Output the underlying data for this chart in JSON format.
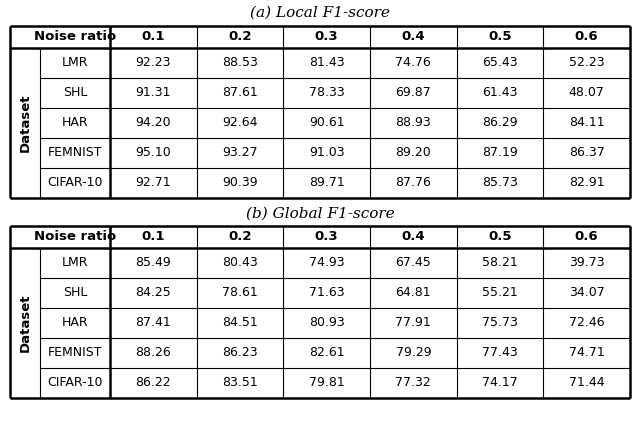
{
  "title_a": "(a) Local F1-score",
  "title_b": "(b) Global F1-score",
  "col_headers": [
    "Noise ratio",
    "0.1",
    "0.2",
    "0.3",
    "0.4",
    "0.5",
    "0.6"
  ],
  "row_label_outer": "Dataset",
  "datasets": [
    "LMR",
    "SHL",
    "HAR",
    "FEMNIST",
    "CIFAR-10"
  ],
  "local_data": [
    [
      "92.23",
      "88.53",
      "81.43",
      "74.76",
      "65.43",
      "52.23"
    ],
    [
      "91.31",
      "87.61",
      "78.33",
      "69.87",
      "61.43",
      "48.07"
    ],
    [
      "94.20",
      "92.64",
      "90.61",
      "88.93",
      "86.29",
      "84.11"
    ],
    [
      "95.10",
      "93.27",
      "91.03",
      "89.20",
      "87.19",
      "86.37"
    ],
    [
      "92.71",
      "90.39",
      "89.71",
      "87.76",
      "85.73",
      "82.91"
    ]
  ],
  "global_data": [
    [
      "85.49",
      "80.43",
      "74.93",
      "67.45",
      "58.21",
      "39.73"
    ],
    [
      "84.25",
      "78.61",
      "71.63",
      "64.81",
      "55.21",
      "34.07"
    ],
    [
      "87.41",
      "84.51",
      "80.93",
      "77.91",
      "75.73",
      "72.46"
    ],
    [
      "88.26",
      "86.23",
      "82.61",
      "79.29",
      "77.43",
      "74.71"
    ],
    [
      "86.22",
      "83.51",
      "79.81",
      "77.32",
      "74.17",
      "71.44"
    ]
  ],
  "bg_color": "#ffffff",
  "line_color": "#000000",
  "text_color": "#000000",
  "title_fontsize": 11,
  "header_fontsize": 9.5,
  "cell_fontsize": 9,
  "dataset_label_fontsize": 9.5
}
